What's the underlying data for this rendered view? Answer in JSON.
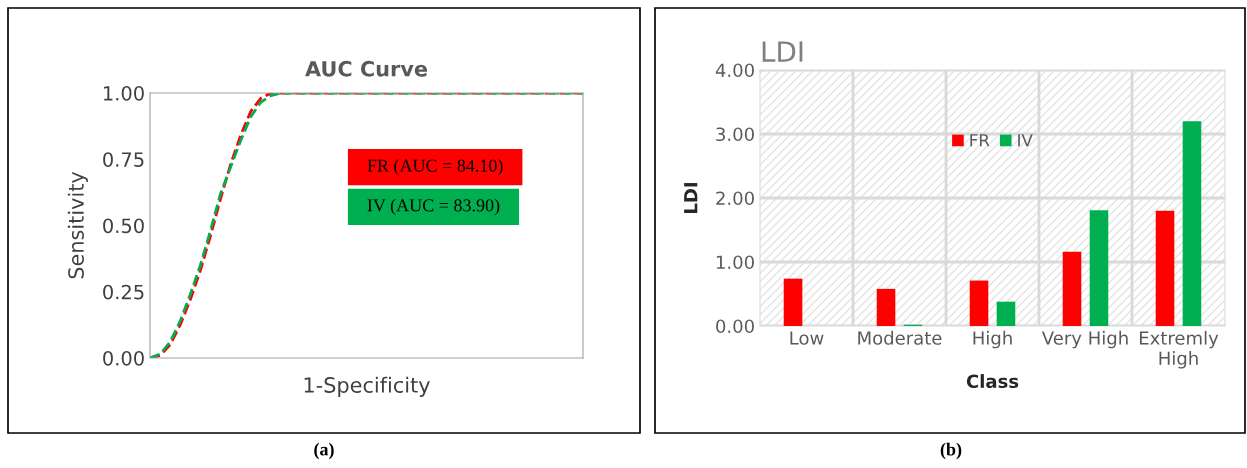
{
  "chart_data": [
    {
      "type": "line",
      "title": "AUC Curve",
      "xlabel": "1-Specificity",
      "ylabel": "Sensitivity",
      "categories": [
        null,
        null,
        null,
        null,
        null,
        null,
        null,
        null,
        null,
        null,
        null,
        null,
        null,
        null,
        null,
        null,
        null,
        null,
        null,
        null,
        null,
        null,
        null,
        null,
        null,
        null,
        null,
        null,
        null,
        null,
        null,
        null,
        null,
        null,
        null,
        null,
        null,
        null,
        null,
        null,
        null,
        null,
        null,
        null
      ],
      "series": [
        {
          "name": "FR (AUC = 84.10)",
          "color": "#ff0000",
          "values": [
            0,
            0.01,
            0.05,
            0.125,
            0.22,
            0.33,
            0.46,
            0.6,
            0.73,
            0.84,
            0.93,
            0.98,
            1,
            1,
            1,
            1,
            1,
            1,
            1,
            1,
            1,
            1,
            1,
            1,
            1,
            1,
            1,
            1,
            1,
            1,
            1,
            1,
            1,
            1,
            1,
            1,
            1,
            1,
            1,
            1,
            1,
            1,
            1,
            1
          ]
        },
        {
          "name": "IV (AUC = 83.90)",
          "color": "#00b050",
          "values": [
            0,
            0.015,
            0.06,
            0.14,
            0.24,
            0.35,
            0.48,
            0.62,
            0.72,
            0.82,
            0.91,
            0.965,
            0.99,
            1,
            1,
            1,
            1,
            1,
            1,
            1,
            1,
            1,
            1,
            1,
            1,
            1,
            1,
            1,
            1,
            1,
            1,
            1,
            1,
            1,
            1,
            1,
            1,
            1,
            1,
            1,
            1,
            1,
            1,
            1
          ]
        }
      ],
      "ylim": [
        0,
        1
      ],
      "yticks": [
        {
          "value": 0,
          "label": "0.00"
        },
        {
          "value": 0.25,
          "label": "0.25"
        },
        {
          "value": 0.5,
          "label": "0.50"
        },
        {
          "value": 0.75,
          "label": "0.75"
        },
        {
          "value": 1,
          "label": "1.00"
        }
      ],
      "grid": false,
      "legend": "right",
      "line_style": "dashed",
      "marker": "none",
      "annotations": [
        "(a)"
      ]
    },
    {
      "type": "bar",
      "title": "LDI",
      "xlabel": "Class",
      "ylabel": "LDI",
      "categories": [
        "Low",
        "Moderate",
        "High",
        "Very High",
        "Extremly\nHigh"
      ],
      "series": [
        {
          "name": "FR",
          "color": "#ff0000",
          "values": [
            0.74,
            0.58,
            0.71,
            1.16,
            1.8
          ]
        },
        {
          "name": "IV",
          "color": "#00b050",
          "values": [
            0,
            0.02,
            0.38,
            1.81,
            3.2
          ]
        }
      ],
      "ylim": [
        0,
        4
      ],
      "yticks": [
        {
          "value": 0,
          "label": "0.00"
        },
        {
          "value": 1,
          "label": "1.00"
        },
        {
          "value": 2,
          "label": "2.00"
        },
        {
          "value": 3,
          "label": "3.00"
        },
        {
          "value": 4,
          "label": "4.00"
        }
      ],
      "grid": true,
      "legend": "top",
      "annotations": [
        "(b)"
      ]
    }
  ]
}
